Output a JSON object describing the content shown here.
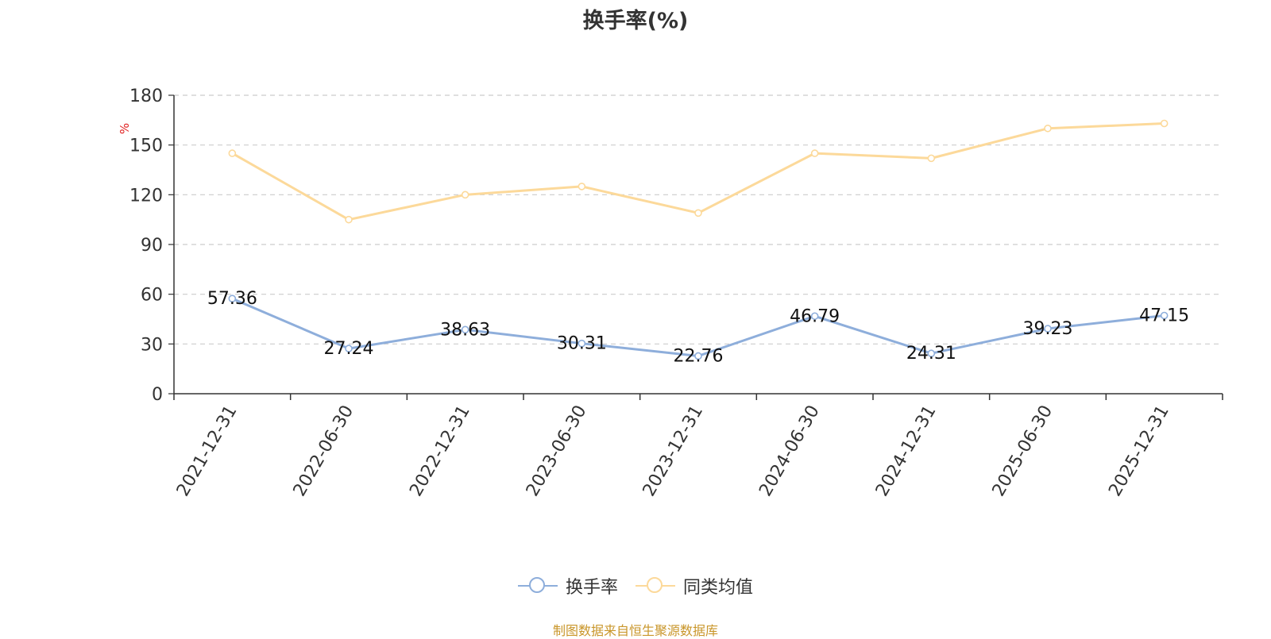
{
  "title": "换手率(%)",
  "source_note": "制图数据来自恒生聚源数据库",
  "chart_data": {
    "type": "line",
    "title": "换手率(%)",
    "ylabel": "%",
    "ylim": [
      0,
      180
    ],
    "yticks": [
      0,
      30,
      60,
      90,
      120,
      150,
      180
    ],
    "grid": true,
    "legend_position": "bottom",
    "categories": [
      "2021-12-31",
      "2022-06-30",
      "2022-12-31",
      "2023-06-30",
      "2023-12-31",
      "2024-06-30",
      "2024-12-31",
      "2025-06-30",
      "2025-12-31"
    ],
    "series": [
      {
        "name": "换手率",
        "color": "#8eaedb",
        "show_labels": true,
        "values": [
          57.36,
          27.24,
          38.63,
          30.31,
          22.76,
          46.79,
          24.31,
          39.23,
          47.15
        ]
      },
      {
        "name": "同类均值",
        "color": "#fcd99a",
        "show_labels": false,
        "values": [
          145,
          105,
          120,
          125,
          109,
          145,
          142,
          160,
          163
        ]
      }
    ]
  }
}
